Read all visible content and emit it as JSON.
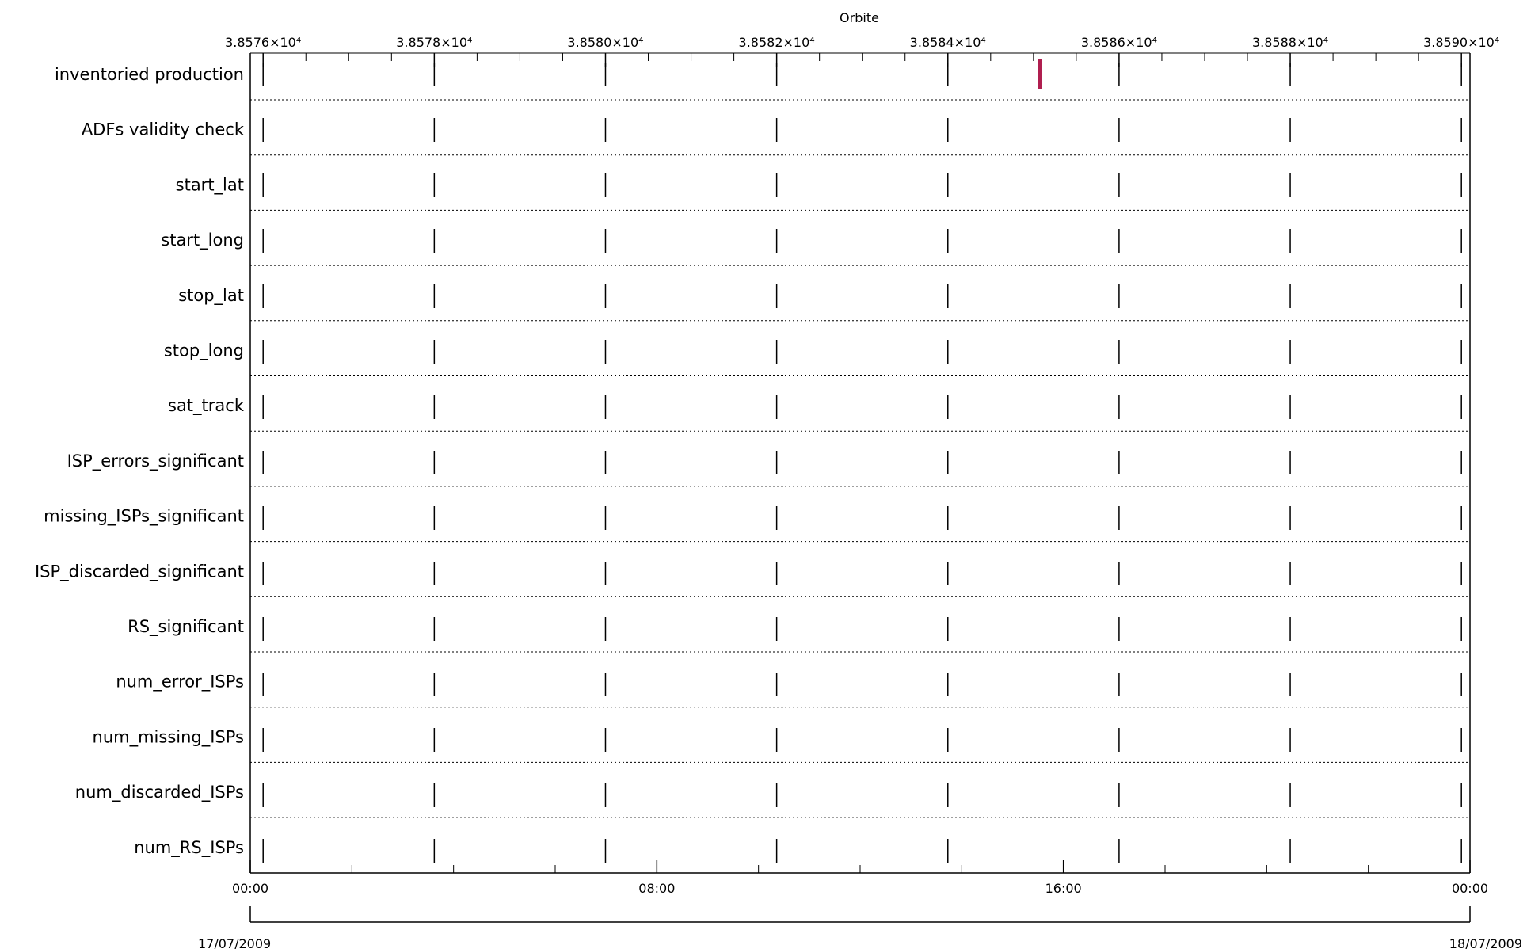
{
  "chart_data": {
    "type": "table",
    "top_axis": {
      "title": "Orbite",
      "tick_labels": [
        "3.8576×10⁴",
        "3.8578×10⁴",
        "3.8580×10⁴",
        "3.8582×10⁴",
        "3.8584×10⁴",
        "3.8586×10⁴",
        "3.8588×10⁴",
        "3.8590×10⁴"
      ],
      "ticks": [
        38576,
        38578,
        38580,
        38582,
        38584,
        38586,
        38588,
        38590
      ],
      "range": [
        38575.85,
        38590.1
      ]
    },
    "bottom_axis": {
      "tick_labels": [
        "00:00",
        "08:00",
        "16:00",
        "00:00"
      ],
      "ticks_hours": [
        0,
        8,
        16,
        24
      ],
      "range_hours": [
        0,
        24
      ],
      "start_date": "17/07/2009",
      "end_date": "18/07/2009"
    },
    "rows": [
      "inventoried production",
      "ADFs validity check",
      "start_lat",
      "start_long",
      "stop_lat",
      "stop_long",
      "sat_track",
      "ISP_errors_significant",
      "missing_ISPs_significant",
      "ISP_discarded_significant",
      "RS_significant",
      "num_error_ISPs",
      "num_missing_ISPs",
      "num_discarded_ISPs",
      "num_RS_ISPs"
    ],
    "marks": [
      {
        "row": "inventoried production",
        "orbit": 38585.08,
        "color": "#b01e4f"
      }
    ],
    "grid": true
  }
}
